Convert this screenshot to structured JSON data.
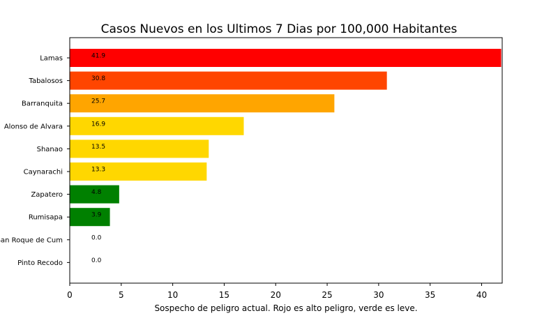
{
  "chart_data": {
    "type": "bar",
    "orientation": "horizontal",
    "title": "Casos Nuevos en los Ultimos 7 Dias por 100,000 Habitantes",
    "xlabel": "Sospecho de peligro actual. Rojo es alto peligro, verde es leve.",
    "ylabel": "",
    "xlim": [
      0,
      42
    ],
    "xticks": [
      0,
      5,
      10,
      15,
      20,
      25,
      30,
      35,
      40
    ],
    "categories": [
      "Lamas",
      "Tabalosos",
      "Barranquita",
      "Alonso de Alvara",
      "Shanao",
      "Caynarachi",
      "Zapatero",
      "Rumisapa",
      "San Roque de Cum",
      "Pinto Recodo"
    ],
    "values": [
      41.9,
      30.8,
      25.7,
      16.9,
      13.5,
      13.3,
      4.8,
      3.9,
      0.0,
      0.0
    ],
    "data_labels": [
      "41.9",
      "30.8",
      "25.7",
      "16.9",
      "13.5",
      "13.3",
      "4.8",
      "3.9",
      "0.0",
      "0.0"
    ],
    "colors": [
      "#ff0000",
      "#ff4500",
      "#ffa500",
      "#ffd700",
      "#ffd700",
      "#ffd700",
      "#008000",
      "#008000",
      "#008000",
      "#008000"
    ],
    "grid": false,
    "legend": "none"
  }
}
